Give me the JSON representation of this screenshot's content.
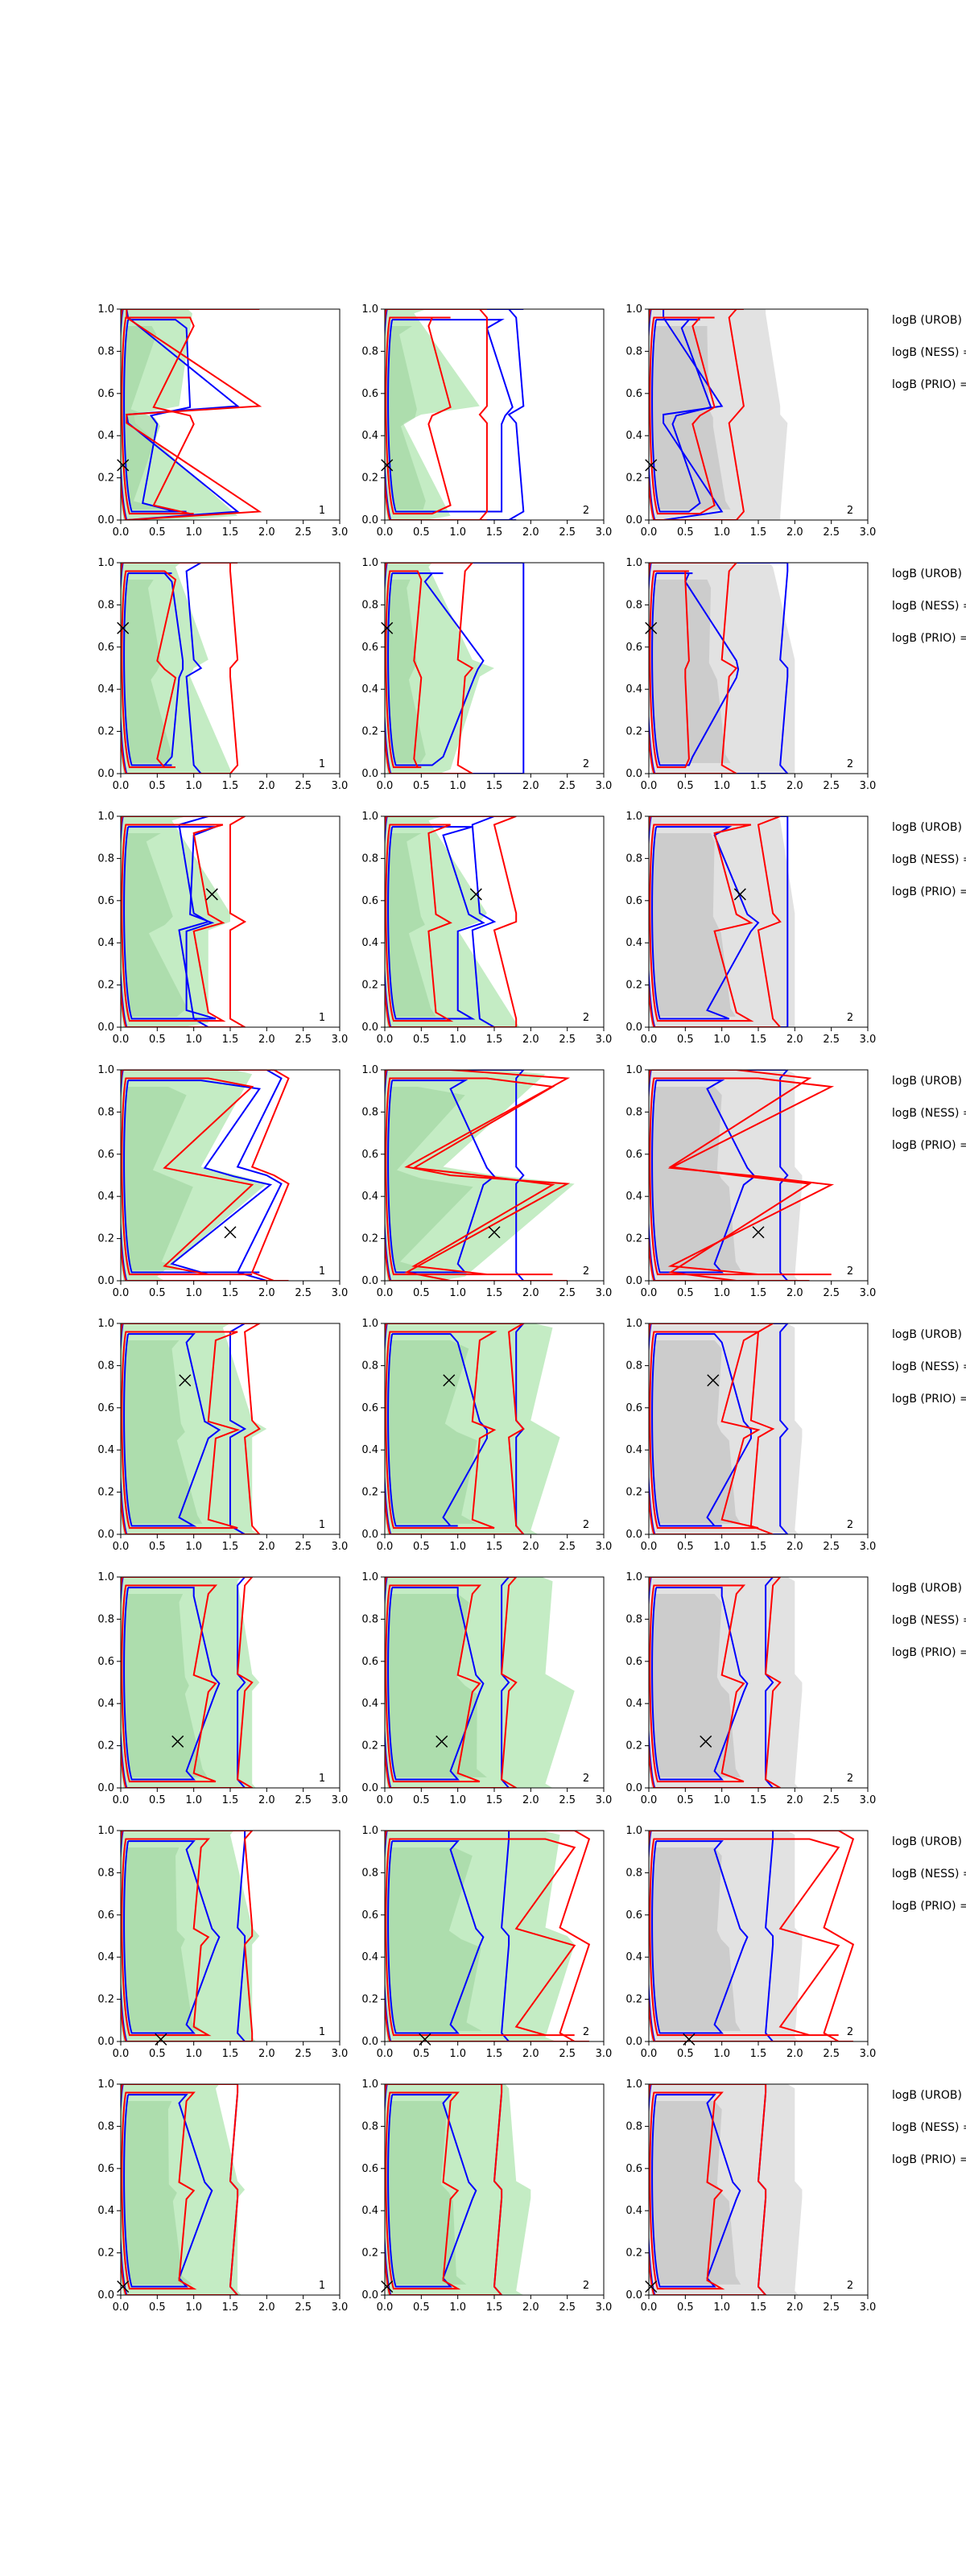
{
  "chart_data": {
    "type": "contour",
    "layout": {
      "rows": 8,
      "cols": 3
    },
    "xlim": [
      0,
      3
    ],
    "ylim": [
      0,
      1
    ],
    "xticks": [
      "0.0",
      "0.5",
      "1.0",
      "1.5",
      "2.0",
      "2.5",
      "3.0"
    ],
    "yticks": [
      "0.0",
      "0.2",
      "0.4",
      "0.6",
      "0.8",
      "1.0"
    ],
    "colors": {
      "fill_green": "#c4ecc4",
      "fill_green_inner": "#a7d9a7",
      "fill_gray": "#e2e2e2",
      "fill_gray_inner": "#c7c7c7",
      "blue": "#0000ff",
      "red": "#ff0000",
      "marker": "#000000"
    },
    "column_fill": [
      "green",
      "green",
      "gray"
    ],
    "column_labels": [
      "1",
      "2",
      "2"
    ],
    "side_labels": [
      "logB (UROB) =",
      "logB (NESS) =",
      "logB (PRIO) ="
    ],
    "rows": [
      {
        "marker": [
          0.03,
          0.26
        ],
        "panels": [
          {
            "fill": [
              [
                0.25,
                0.85,
                0.98
              ],
              [
                0.55,
                0.45,
                0.75
              ],
              [
                0.8,
                0.18,
                0.2
              ],
              [
                1.6,
                0.05,
                0.05
              ]
            ],
            "blue": [
              [
                0.3,
                0.75,
                0.9
              ],
              [
                0.6,
                0.6,
                0.55
              ],
              [
                0.95,
                0.25,
                0.25
              ],
              [
                1.6,
                0.08,
                0.1
              ]
            ],
            "red": [
              [
                0.45,
                0.95,
                1.0
              ],
              [
                0.8,
                0.7,
                0.6
              ],
              [
                1.1,
                0.3,
                0.3
              ],
              [
                1.9,
                0.08,
                0.08
              ]
            ]
          },
          {
            "fill": [
              [
                0.8,
                0.75,
                0.4
              ],
              [
                1.3,
                0.5,
                0.25
              ],
              [
                0.9,
                0.2,
                0.2
              ]
            ],
            "blue": [
              [
                1.6,
                1.6,
                1.4
              ],
              [
                1.9,
                1.7,
                1.8
              ]
            ],
            "red": [
              [
                0.9,
                0.65,
                0.6
              ],
              [
                1.4,
                1.3,
                1.4
              ]
            ]
          },
          {
            "fill": [
              [
                1.5,
                1.6,
                1.6
              ],
              [
                1.8,
                1.8,
                1.9
              ]
            ],
            "blue": [
              [
                0.7,
                0.55,
                0.45
              ],
              [
                1.0,
                0.2,
                0.2
              ]
            ],
            "red": [
              [
                0.9,
                0.7,
                0.6
              ],
              [
                1.3,
                1.2,
                1.1
              ]
            ]
          }
        ]
      },
      {
        "marker": [
          0.03,
          0.69
        ],
        "panels": [
          {
            "fill": [
              [
                1.0,
                0.9,
                0.75
              ],
              [
                1.2,
                1.0,
                0.95
              ],
              [
                1.5,
                1.5,
                1.4
              ]
            ],
            "blue": [
              [
                0.7,
                0.6,
                0.7
              ],
              [
                1.0,
                1.1,
                0.9
              ]
            ],
            "red": [
              [
                0.5,
                0.6,
                0.75
              ],
              [
                1.6,
                1.5,
                1.5
              ]
            ]
          },
          {
            "fill": [
              [
                0.8,
                0.7,
                0.6
              ],
              [
                1.2,
                1.5,
                1.3
              ],
              [
                0.9,
                0.6,
                0.4
              ]
            ],
            "blue": [
              [
                0.8,
                0.65,
                0.55
              ],
              [
                1.5,
                1.7,
                1.8
              ],
              [
                1.9,
                1.9,
                1.9
              ]
            ],
            "red": [
              [
                0.4,
                0.45,
                0.5
              ],
              [
                1.0,
                1.2,
                1.1
              ]
            ]
          },
          {
            "fill": [
              [
                1.5,
                1.6,
                1.7
              ],
              [
                2.0,
                2.0,
                2.0
              ]
            ],
            "blue": [
              [
                0.6,
                0.55,
                0.5
              ],
              [
                1.8,
                1.9,
                1.9
              ]
            ],
            "red": [
              [
                0.55,
                0.5,
                0.5
              ],
              [
                1.0,
                1.2,
                1.1
              ]
            ]
          }
        ]
      },
      {
        "marker": [
          1.25,
          0.63
        ],
        "panels": [
          {
            "fill": [
              [
                1.3,
                1.1,
                0.7
              ],
              [
                1.5,
                1.5,
                1.2
              ],
              [
                1.2,
                0.5,
                0.3
              ]
            ],
            "blue": [
              [
                0.9,
                1.3,
                1.0
              ],
              [
                1.0,
                1.2,
                0.8
              ]
            ],
            "red": [
              [
                1.2,
                1.4,
                1.0
              ],
              [
                1.5,
                1.7,
                1.5
              ]
            ]
          },
          {
            "fill": [
              [
                0.9,
                1.0,
                0.6
              ],
              [
                1.4,
                1.3,
                1.0
              ],
              [
                1.8,
                1.9,
                1.7
              ]
            ],
            "blue": [
              [
                1.0,
                1.2,
                0.8
              ],
              [
                1.3,
                1.5,
                1.2
              ]
            ],
            "red": [
              [
                0.7,
                0.9,
                0.6
              ],
              [
                1.8,
                1.8,
                1.5
              ]
            ]
          },
          {
            "fill": [
              [
                1.6,
                1.7,
                1.8
              ],
              [
                2.0,
                2.0,
                2.0
              ]
            ],
            "blue": [
              [
                0.8,
                1.1,
                0.9
              ],
              [
                1.9,
                1.9,
                1.9
              ]
            ],
            "red": [
              [
                1.2,
                1.4,
                0.9
              ],
              [
                1.7,
                1.8,
                1.5
              ]
            ]
          }
        ]
      },
      {
        "marker": [
          1.5,
          0.23
        ],
        "panels": [
          {
            "fill": [
              [
                0.8,
                1.3,
                1.8
              ],
              [
                1.1,
                1.6,
                2.0
              ],
              [
                0.5,
                0.7,
                0.6
              ]
            ],
            "blue": [
              [
                0.7,
                1.1,
                1.9
              ],
              [
                1.6,
                2.0,
                2.2
              ]
            ],
            "red": [
              [
                0.6,
                1.2,
                1.8
              ],
              [
                1.8,
                2.1,
                2.3
              ]
            ]
          },
          {
            "fill": [
              [
                0.3,
                0.9,
                2.2
              ],
              [
                0.8,
                1.5,
                2.6
              ],
              [
                1.1,
                0.4,
                0.3
              ]
            ],
            "blue": [
              [
                1.0,
                1.1,
                0.9
              ],
              [
                1.8,
                1.9,
                1.8
              ]
            ],
            "red": [
              [
                0.4,
                1.4,
                2.3
              ],
              [
                0.3,
                0.9,
                2.5
              ]
            ]
          },
          {
            "fill": [
              [
                1.7,
                1.8,
                2.0
              ],
              [
                2.0,
                2.1,
                2.1
              ]
            ],
            "blue": [
              [
                0.9,
                1.0,
                0.8
              ],
              [
                1.8,
                1.9,
                1.8
              ]
            ],
            "red": [
              [
                0.3,
                1.5,
                2.5
              ],
              [
                0.3,
                1.2,
                2.2
              ]
            ]
          }
        ]
      },
      {
        "marker": [
          0.88,
          0.73
        ],
        "panels": [
          {
            "fill": [
              [
                1.5,
                1.6,
                1.4
              ],
              [
                1.8,
                2.0,
                1.8
              ]
            ],
            "blue": [
              [
                0.8,
                1.0,
                0.9
              ],
              [
                1.5,
                1.7,
                1.5
              ]
            ],
            "red": [
              [
                1.2,
                1.6,
                1.3
              ],
              [
                1.8,
                1.9,
                1.7
              ]
            ]
          },
          {
            "fill": [
              [
                1.5,
                1.8,
                2.3
              ],
              [
                2.0,
                2.2,
                2.4
              ]
            ],
            "blue": [
              [
                0.8,
                0.9,
                1.0
              ],
              [
                1.8,
                1.9,
                1.8
              ]
            ],
            "red": [
              [
                1.2,
                1.5,
                1.3
              ],
              [
                1.8,
                1.9,
                1.7
              ]
            ]
          },
          {
            "fill": [
              [
                1.7,
                1.8,
                2.0
              ],
              [
                2.0,
                2.1,
                2.1
              ]
            ],
            "blue": [
              [
                0.8,
                0.9,
                1.0
              ],
              [
                1.8,
                1.9,
                1.8
              ]
            ],
            "red": [
              [
                1.0,
                1.5,
                1.3
              ],
              [
                1.4,
                1.7,
                1.5
              ]
            ]
          }
        ]
      },
      {
        "marker": [
          0.78,
          0.22
        ],
        "panels": [
          {
            "fill": [
              [
                1.6,
                1.7,
                1.6
              ],
              [
                1.8,
                1.9,
                1.8
              ]
            ],
            "blue": [
              [
                0.9,
                1.0,
                1.0
              ],
              [
                1.6,
                1.7,
                1.6
              ]
            ],
            "red": [
              [
                1.0,
                1.3,
                1.2
              ],
              [
                1.6,
                1.8,
                1.7
              ]
            ]
          },
          {
            "fill": [
              [
                1.8,
                2.0,
                2.3
              ],
              [
                2.2,
                2.4,
                2.6
              ]
            ],
            "blue": [
              [
                0.9,
                1.0,
                1.0
              ],
              [
                1.6,
                1.7,
                1.6
              ]
            ],
            "red": [
              [
                1.0,
                1.3,
                1.2
              ],
              [
                1.6,
                1.8,
                1.7
              ]
            ]
          },
          {
            "fill": [
              [
                1.7,
                1.8,
                2.0
              ],
              [
                2.0,
                2.1,
                2.1
              ]
            ],
            "blue": [
              [
                0.9,
                1.0,
                1.0
              ],
              [
                1.6,
                1.7,
                1.6
              ]
            ],
            "red": [
              [
                1.0,
                1.3,
                1.2
              ],
              [
                1.6,
                1.8,
                1.7
              ]
            ]
          }
        ]
      },
      {
        "marker": [
          0.55,
          0.01
        ],
        "panels": [
          {
            "fill": [
              [
                1.4,
                1.6,
                1.5
              ],
              [
                1.8,
                1.9,
                1.8
              ]
            ],
            "blue": [
              [
                0.9,
                1.0,
                0.9
              ],
              [
                1.6,
                1.7,
                1.7
              ]
            ],
            "red": [
              [
                1.0,
                1.2,
                1.1
              ],
              [
                1.8,
                1.8,
                1.7
              ]
            ]
          },
          {
            "fill": [
              [
                1.6,
                1.9,
                2.4
              ],
              [
                2.2,
                2.5,
                2.6
              ]
            ],
            "blue": [
              [
                0.9,
                1.0,
                0.9
              ],
              [
                1.6,
                1.7,
                1.7
              ]
            ],
            "red": [
              [
                1.8,
                2.2,
                2.6
              ],
              [
                2.4,
                2.6,
                2.8
              ]
            ]
          },
          {
            "fill": [
              [
                1.7,
                1.8,
                2.0
              ],
              [
                2.0,
                2.1,
                2.1
              ]
            ],
            "blue": [
              [
                0.9,
                1.0,
                0.9
              ],
              [
                1.6,
                1.7,
                1.7
              ]
            ],
            "red": [
              [
                1.8,
                2.2,
                2.6
              ],
              [
                2.4,
                2.6,
                2.8
              ]
            ]
          }
        ]
      },
      {
        "marker": [
          0.03,
          0.04
        ],
        "panels": [
          {
            "fill": [
              [
                1.2,
                1.4,
                1.3
              ],
              [
                1.6,
                1.7,
                1.6
              ]
            ],
            "blue": [
              [
                0.8,
                0.9,
                0.8
              ],
              [
                1.5,
                1.6,
                1.6
              ]
            ],
            "red": [
              [
                0.8,
                1.0,
                0.9
              ],
              [
                1.5,
                1.6,
                1.6
              ]
            ]
          },
          {
            "fill": [
              [
                1.4,
                1.6,
                1.7
              ],
              [
                1.8,
                2.0,
                2.0
              ]
            ],
            "blue": [
              [
                0.8,
                0.9,
                0.8
              ],
              [
                1.5,
                1.6,
                1.6
              ]
            ],
            "red": [
              [
                0.8,
                1.0,
                0.9
              ],
              [
                1.5,
                1.6,
                1.6
              ]
            ]
          },
          {
            "fill": [
              [
                1.7,
                1.8,
                2.0
              ],
              [
                2.0,
                2.1,
                2.1
              ]
            ],
            "blue": [
              [
                0.8,
                0.9,
                0.8
              ],
              [
                1.5,
                1.6,
                1.6
              ]
            ],
            "red": [
              [
                0.8,
                1.0,
                0.9
              ],
              [
                1.5,
                1.6,
                1.6
              ]
            ]
          }
        ]
      }
    ]
  }
}
